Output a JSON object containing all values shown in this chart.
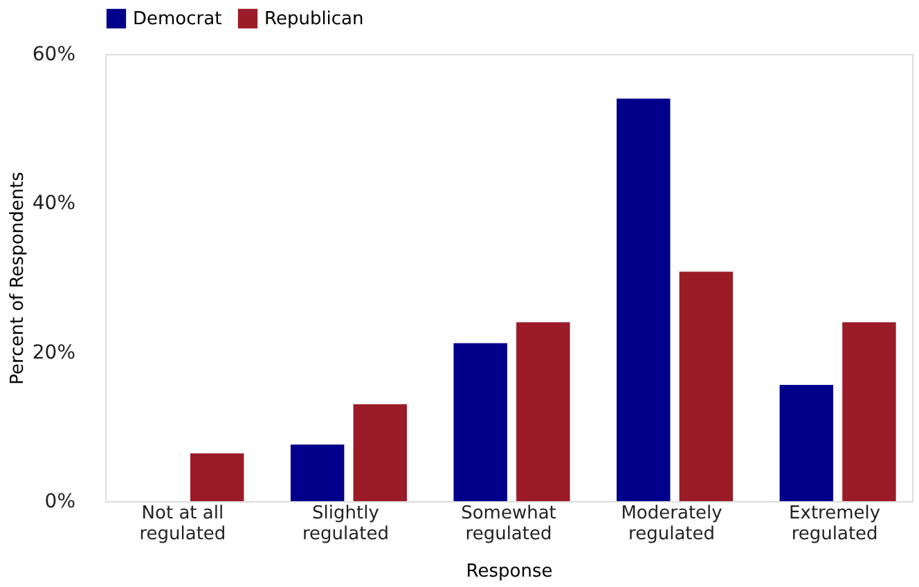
{
  "chart_data": {
    "type": "bar",
    "xlabel": "Response",
    "ylabel": "Percent of Respondents",
    "categories": [
      "Not at all regulated",
      "Slightly regulated",
      "Somewhat regulated",
      "Moderately regulated",
      "Extremely regulated"
    ],
    "series": [
      {
        "name": "Democrat",
        "color": "#00008b",
        "values": [
          0,
          7.6,
          21.2,
          54,
          15.6
        ]
      },
      {
        "name": "Republican",
        "color": "#9b1c28",
        "values": [
          6.4,
          13,
          24,
          30.8,
          24
        ]
      }
    ],
    "ylim": [
      0,
      60
    ],
    "yticks": [
      {
        "value": 0,
        "label": "0%"
      },
      {
        "value": 20,
        "label": "20%"
      },
      {
        "value": 40,
        "label": "40%"
      },
      {
        "value": 60,
        "label": "60%"
      }
    ],
    "grid": false,
    "legend": "top"
  }
}
